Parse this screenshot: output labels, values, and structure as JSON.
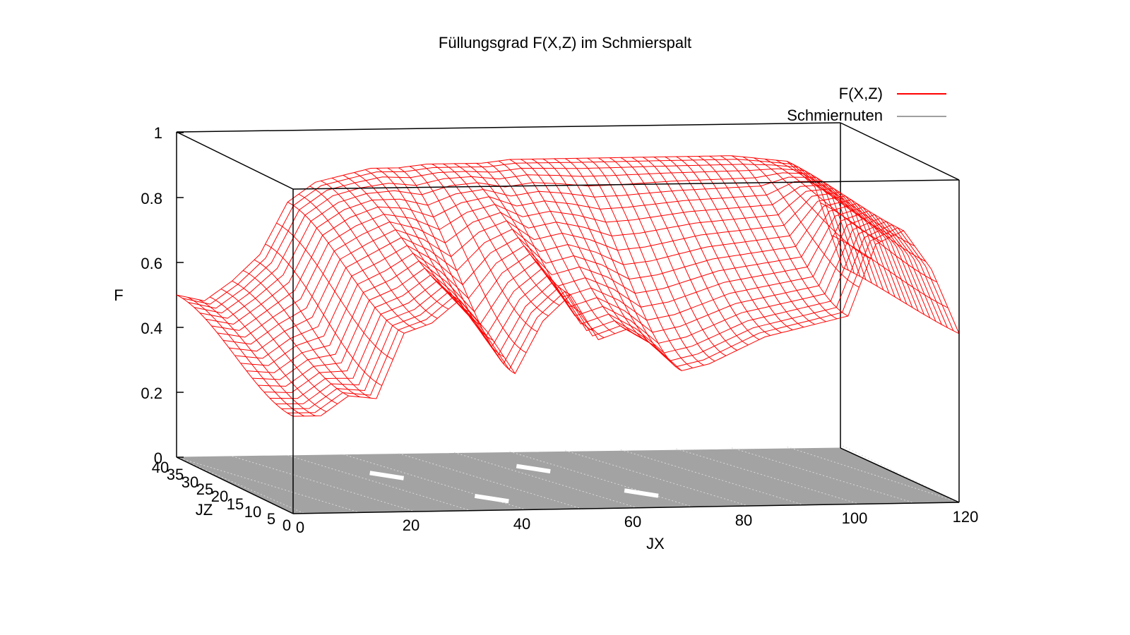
{
  "chart_data": {
    "type": "surface3d",
    "title": "Füllungsgrad F(X,Z) im Schmierspalt",
    "xlabel": "JX",
    "ylabel": "JZ",
    "zlabel": "F",
    "xlim": [
      0,
      120
    ],
    "ylim": [
      0,
      40
    ],
    "zlim": [
      0,
      1
    ],
    "x_ticks": [
      "0",
      "20",
      "40",
      "60",
      "80",
      "100",
      "120"
    ],
    "y_ticks": [
      "0",
      "5",
      "10",
      "15",
      "20",
      "25",
      "30",
      "35",
      "40"
    ],
    "z_ticks": [
      "0",
      "0.2",
      "0.4",
      "0.6",
      "0.8",
      "1"
    ],
    "legend_position": "top-right",
    "series": [
      {
        "name": "F(X,Z)",
        "color": "#ff0000",
        "style": "wireframe-surface"
      },
      {
        "name": "Schmiernuten",
        "color": "#a0a0a0",
        "style": "base-plane"
      }
    ],
    "surface_profile_front_jz0": {
      "x": [
        0,
        5,
        10,
        15,
        20,
        25,
        30,
        35,
        40,
        45,
        50,
        55,
        60,
        65,
        70,
        75,
        80,
        85,
        90,
        95,
        100,
        105,
        110,
        115,
        120
      ],
      "z": [
        0.3,
        0.3,
        0.36,
        0.35,
        0.55,
        0.58,
        0.65,
        0.55,
        0.42,
        0.58,
        0.66,
        0.52,
        0.55,
        0.5,
        0.42,
        0.44,
        0.48,
        0.52,
        0.54,
        0.56,
        0.58,
        0.8,
        0.84,
        0.72,
        0.52
      ]
    },
    "surface_profile_back_jz40": {
      "x": [
        0,
        5,
        10,
        15,
        20,
        25,
        30,
        35,
        40,
        45,
        50,
        55,
        60,
        65,
        70,
        75,
        80,
        85,
        90,
        95,
        100,
        105,
        110,
        115,
        120
      ],
      "z": [
        0.5,
        0.48,
        0.54,
        0.62,
        0.78,
        0.84,
        0.86,
        0.88,
        0.88,
        0.89,
        0.89,
        0.89,
        0.9,
        0.9,
        0.9,
        0.9,
        0.9,
        0.9,
        0.9,
        0.9,
        0.9,
        0.89,
        0.88,
        0.8,
        0.55
      ]
    },
    "groove_marks": [
      {
        "x": 30,
        "jz": 25
      },
      {
        "x": 40,
        "jz": 8
      },
      {
        "x": 58,
        "jz": 28
      },
      {
        "x": 68,
        "jz": 10
      }
    ]
  }
}
